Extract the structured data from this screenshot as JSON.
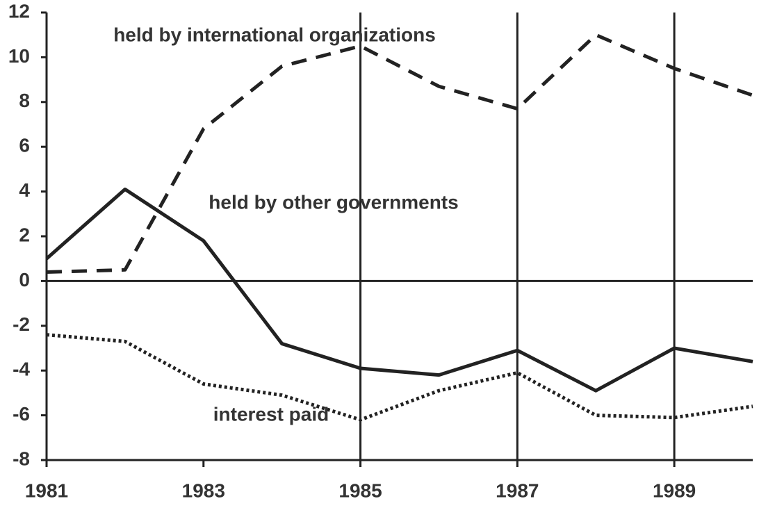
{
  "chart_data": {
    "type": "line",
    "x": [
      1981,
      1982,
      1983,
      1984,
      1985,
      1986,
      1987,
      1988,
      1989,
      1990
    ],
    "series": [
      {
        "name": "held by international organizations",
        "color": "#222",
        "dash": "dashed",
        "values": [
          0.4,
          0.5,
          6.8,
          9.6,
          10.5,
          8.7,
          7.7,
          11.0,
          9.5,
          8.3
        ]
      },
      {
        "name": "held by other governments",
        "color": "#222",
        "dash": "solid",
        "values": [
          1.0,
          4.1,
          1.8,
          -2.8,
          -3.9,
          -4.2,
          -3.1,
          -4.9,
          -3.0,
          -3.6
        ]
      },
      {
        "name": "interest paid",
        "color": "#222",
        "dash": "dotted",
        "values": [
          -2.4,
          -2.7,
          -4.6,
          -5.1,
          -6.2,
          -4.9,
          -4.1,
          -6.0,
          -6.1,
          -5.6
        ]
      }
    ],
    "xlim": [
      1981,
      1990
    ],
    "xticks": [
      1981,
      1983,
      1985,
      1987,
      1989
    ],
    "ylim": [
      -8,
      12
    ],
    "yticks": [
      12,
      10,
      8,
      6,
      4,
      2,
      0,
      -2,
      -4,
      -6,
      -8
    ],
    "vlines": [
      1985,
      1987,
      1989
    ]
  }
}
